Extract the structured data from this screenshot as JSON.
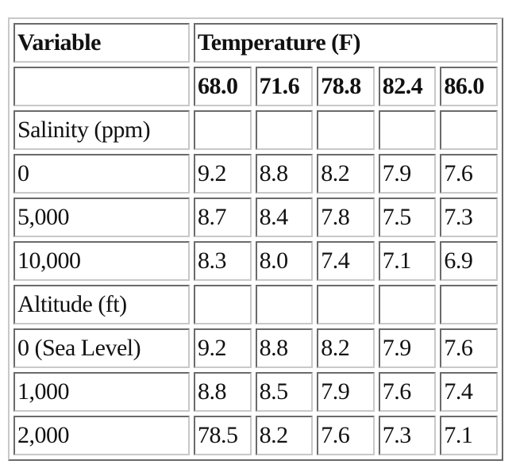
{
  "table": {
    "header": [
      "Variable",
      "Temperature (F)"
    ],
    "temperatures": [
      "68.0",
      "71.6",
      "78.8",
      "82.4",
      "86.0"
    ],
    "sections": [
      {
        "label": "Salinity (ppm)",
        "rows": [
          {
            "label": "0",
            "values": [
              "9.2",
              "8.8",
              "8.2",
              "7.9",
              "7.6"
            ]
          },
          {
            "label": "5,000",
            "values": [
              "8.7",
              "8.4",
              "7.8",
              "7.5",
              "7.3"
            ]
          },
          {
            "label": "10,000",
            "values": [
              "8.3",
              "8.0",
              "7.4",
              "7.1",
              "6.9"
            ]
          }
        ]
      },
      {
        "label": "Altitude (ft)",
        "rows": [
          {
            "label": "0 (Sea Level)",
            "values": [
              "9.2",
              "8.8",
              "8.2",
              "7.9",
              "7.6"
            ]
          },
          {
            "label": "1,000",
            "values": [
              "8.8",
              "8.5",
              "7.9",
              "7.6",
              "7.4"
            ]
          },
          {
            "label": "2,000",
            "values": [
              "78.5",
              "8.2",
              "7.6",
              "7.3",
              "7.1"
            ]
          }
        ]
      }
    ]
  }
}
